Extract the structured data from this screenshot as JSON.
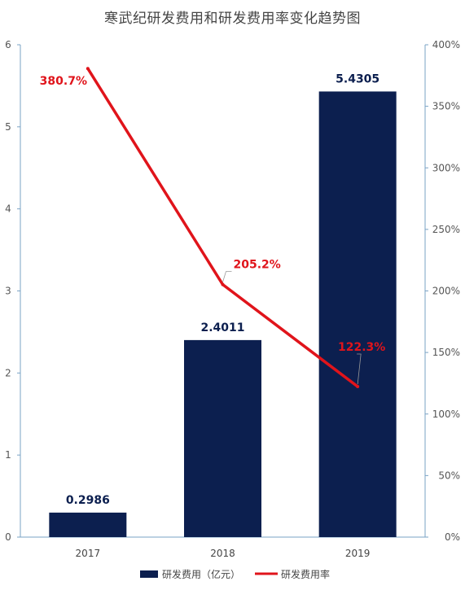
{
  "chart_data": {
    "type": "bar",
    "title": "寒武纪研发费用和研发费用率变化趋势图",
    "categories": [
      "2017",
      "2018",
      "2019"
    ],
    "series": [
      {
        "name": "研发费用（亿元）",
        "type": "bar",
        "axis": "left",
        "values": [
          0.2986,
          2.4011,
          5.4305
        ],
        "labels": [
          "0.2986",
          "2.4011",
          "5.4305"
        ]
      },
      {
        "name": "研发费用率",
        "type": "line",
        "axis": "right",
        "values": [
          380.7,
          205.2,
          122.3
        ],
        "labels": [
          "380.7%",
          "205.2%",
          "122.3%"
        ]
      }
    ],
    "ylim_left": [
      0,
      6
    ],
    "yticks_left": [
      "0",
      "1",
      "2",
      "3",
      "4",
      "5",
      "6"
    ],
    "ylim_right": [
      0,
      400
    ],
    "yticks_right": [
      "0%",
      "50%",
      "100%",
      "150%",
      "200%",
      "250%",
      "300%",
      "350%",
      "400%"
    ],
    "colors": {
      "bar": "#0c1f4f",
      "line": "#e0141b"
    },
    "legend_position": "bottom",
    "grid": false
  }
}
